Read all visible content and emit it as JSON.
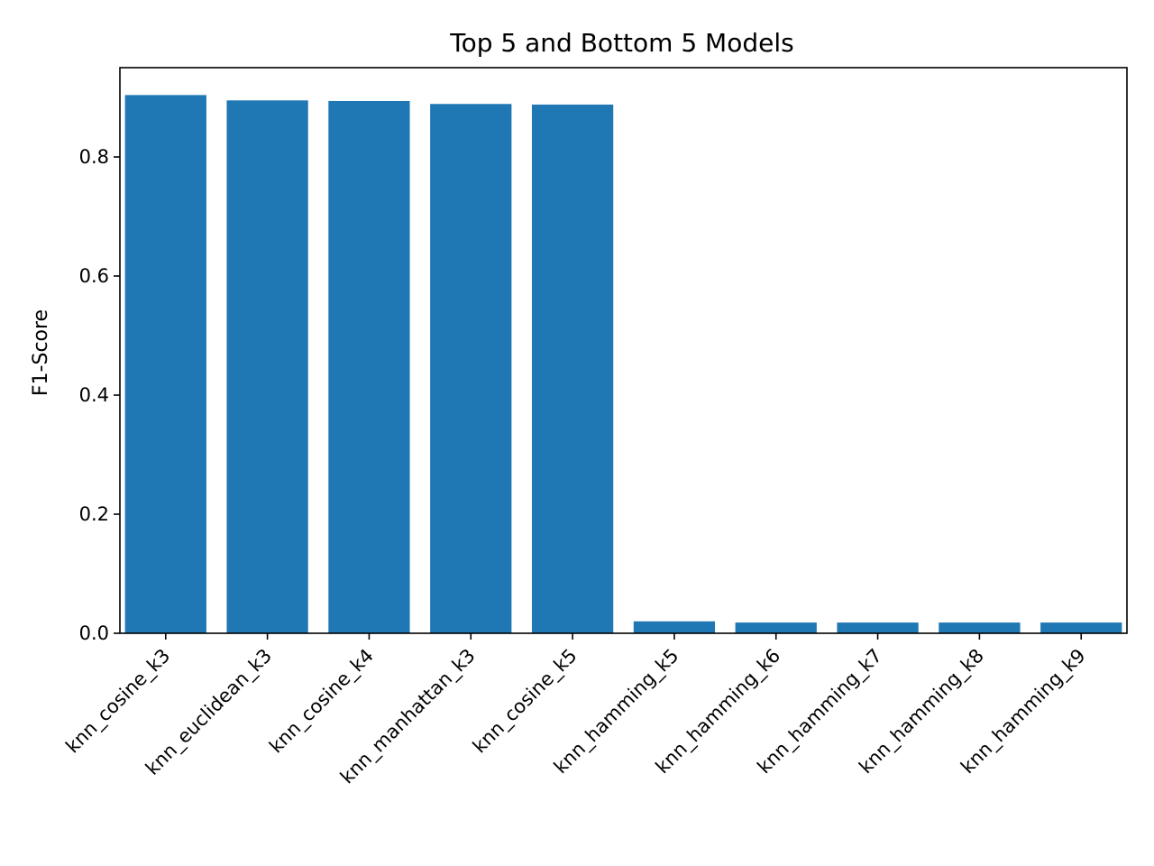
{
  "chart_data": {
    "type": "bar",
    "title": "Top 5 and Bottom 5 Models",
    "xlabel": "",
    "ylabel": "F1-Score",
    "categories": [
      "knn_cosine_k3",
      "knn_euclidean_k3",
      "knn_cosine_k4",
      "knn_manhattan_k3",
      "knn_cosine_k5",
      "knn_hamming_k5",
      "knn_hamming_k6",
      "knn_hamming_k7",
      "knn_hamming_k8",
      "knn_hamming_k9"
    ],
    "values": [
      0.904,
      0.895,
      0.894,
      0.889,
      0.888,
      0.02,
      0.018,
      0.018,
      0.018,
      0.018
    ],
    "ylim": [
      0,
      0.95
    ],
    "yticks": [
      0.0,
      0.2,
      0.4,
      0.6,
      0.8
    ],
    "ytick_labels": [
      "0.0",
      "0.2",
      "0.4",
      "0.6",
      "0.8"
    ],
    "bar_color": "#1f77b4",
    "grid": false,
    "legend": "none"
  }
}
